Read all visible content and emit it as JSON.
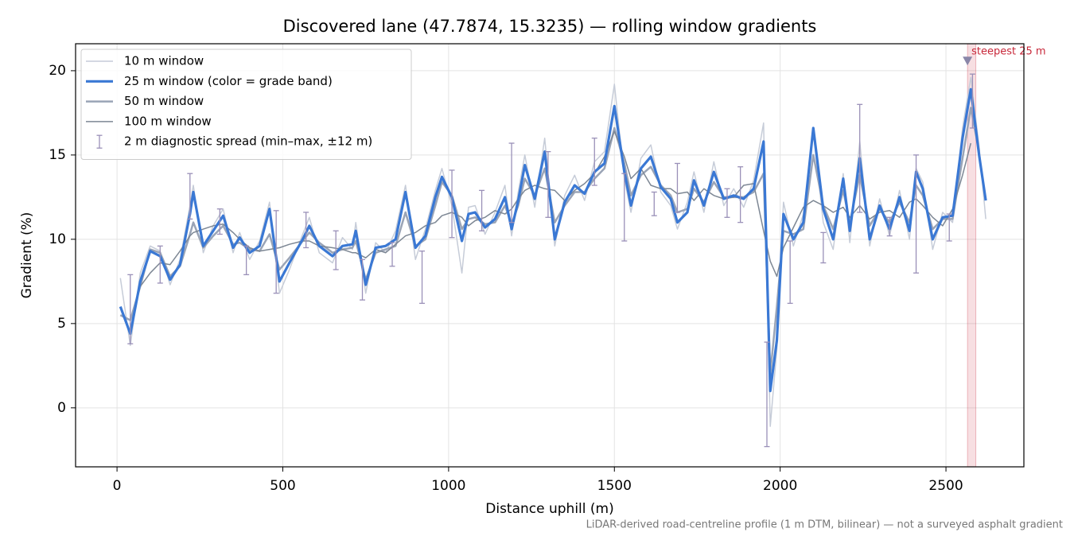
{
  "chart_data": {
    "type": "line",
    "title": "Discovered lane (47.7874, 15.3235) — rolling window gradients",
    "x_label": "Distance uphill (m)",
    "y_label": "Gradient (%)",
    "footnote": "LiDAR-derived road-centreline profile (1 m DTM, bilinear) — not a surveyed asphalt gradient",
    "xlim": [
      -125,
      2735
    ],
    "ylim": [
      -3.5,
      21.6
    ],
    "xticks": [
      0,
      500,
      1000,
      1500,
      2000,
      2500
    ],
    "yticks": [
      0,
      5,
      10,
      15,
      20
    ],
    "grid": true,
    "legend": "upper left",
    "x": [
      10,
      40,
      70,
      100,
      130,
      160,
      190,
      220,
      230,
      260,
      290,
      320,
      350,
      370,
      400,
      430,
      460,
      490,
      520,
      560,
      580,
      610,
      650,
      680,
      710,
      720,
      750,
      780,
      810,
      840,
      870,
      900,
      930,
      960,
      980,
      1010,
      1040,
      1060,
      1080,
      1110,
      1140,
      1170,
      1190,
      1210,
      1230,
      1260,
      1290,
      1320,
      1350,
      1380,
      1410,
      1440,
      1470,
      1500,
      1530,
      1550,
      1580,
      1610,
      1640,
      1670,
      1690,
      1720,
      1740,
      1770,
      1800,
      1830,
      1860,
      1890,
      1920,
      1950,
      1970,
      1990,
      2010,
      2040,
      2070,
      2100,
      2130,
      2160,
      2190,
      2210,
      2240,
      2270,
      2300,
      2330,
      2360,
      2390,
      2410,
      2430,
      2460,
      2490,
      2520,
      2550,
      2575,
      2600,
      2620
    ],
    "series": [
      {
        "name": "10 m window",
        "color": "#c6ccd8",
        "linewidth": 1.5,
        "values": [
          7.7,
          3.7,
          8.0,
          9.6,
          9.3,
          7.3,
          8.8,
          12.0,
          13.2,
          9.2,
          10.8,
          11.8,
          9.2,
          10.4,
          8.8,
          9.9,
          12.2,
          6.8,
          8.2,
          10.3,
          11.3,
          9.2,
          8.6,
          10.1,
          9.4,
          11.0,
          6.8,
          9.8,
          9.2,
          10.5,
          13.2,
          8.8,
          10.6,
          12.9,
          14.2,
          12.0,
          8.0,
          11.9,
          12.0,
          10.3,
          11.6,
          13.2,
          10.2,
          12.8,
          15.0,
          11.9,
          16.0,
          9.6,
          12.6,
          13.8,
          12.3,
          14.6,
          15.2,
          19.2,
          13.6,
          11.6,
          14.8,
          15.6,
          12.8,
          12.0,
          10.6,
          12.2,
          14.0,
          11.6,
          14.6,
          12.0,
          13.0,
          11.9,
          13.5,
          16.9,
          -1.1,
          3.5,
          12.2,
          9.6,
          11.5,
          16.4,
          11.0,
          9.4,
          13.9,
          9.8,
          15.8,
          9.6,
          12.4,
          10.2,
          12.9,
          10.0,
          14.2,
          13.4,
          9.4,
          11.6,
          11.0,
          16.6,
          19.6,
          15.5,
          11.2
        ]
      },
      {
        "name": "50 m window",
        "color": "#9aa4b6",
        "linewidth": 2.5,
        "values": [
          5.5,
          5.2,
          7.2,
          9.4,
          9.2,
          7.8,
          8.4,
          10.3,
          11.0,
          9.5,
          10.2,
          10.8,
          9.7,
          9.8,
          9.4,
          9.3,
          10.3,
          8.2,
          8.9,
          9.9,
          10.4,
          9.8,
          9.2,
          9.4,
          9.5,
          9.9,
          7.6,
          9.2,
          9.4,
          9.6,
          11.6,
          9.6,
          10.0,
          12.0,
          13.4,
          12.6,
          10.6,
          11.2,
          11.3,
          10.9,
          11.0,
          12.0,
          10.9,
          12.0,
          13.6,
          12.6,
          14.2,
          11.0,
          12.0,
          12.8,
          12.8,
          13.6,
          14.2,
          16.6,
          14.5,
          12.6,
          13.8,
          14.3,
          13.2,
          12.6,
          11.6,
          11.8,
          13.0,
          12.2,
          13.4,
          12.5,
          12.5,
          12.5,
          12.8,
          13.9,
          2.0,
          6.0,
          10.5,
          10.3,
          10.6,
          15.0,
          12.0,
          10.6,
          12.9,
          11.0,
          13.8,
          10.8,
          11.8,
          11.0,
          12.2,
          11.0,
          13.2,
          12.6,
          10.6,
          11.2,
          11.2,
          14.8,
          17.8,
          15.2,
          null
        ]
      },
      {
        "name": "100 m window",
        "color": "#7d8794",
        "linewidth": 1.5,
        "values": [
          null,
          null,
          7.2,
          8.0,
          8.6,
          8.5,
          9.3,
          10.2,
          10.4,
          10.6,
          10.8,
          10.9,
          10.4,
          10.0,
          9.5,
          9.3,
          9.4,
          9.5,
          9.7,
          9.9,
          9.9,
          9.6,
          9.5,
          9.4,
          9.2,
          9.2,
          8.9,
          9.4,
          9.2,
          9.7,
          10.2,
          10.4,
          10.8,
          11.0,
          11.4,
          11.6,
          11.3,
          10.8,
          11.1,
          11.3,
          11.7,
          11.5,
          11.8,
          12.4,
          12.9,
          13.2,
          13.0,
          12.9,
          12.3,
          12.9,
          13.3,
          13.9,
          14.9,
          16.4,
          14.9,
          13.6,
          14.2,
          13.2,
          13.0,
          13.0,
          12.7,
          12.8,
          12.3,
          13.0,
          12.6,
          12.4,
          12.5,
          13.2,
          13.3,
          10.5,
          8.7,
          7.8,
          9.5,
          10.7,
          11.9,
          12.3,
          12.0,
          11.6,
          11.9,
          11.3,
          12.0,
          11.2,
          11.6,
          11.7,
          11.3,
          12.2,
          12.4,
          12.0,
          11.3,
          10.8,
          11.8,
          13.8,
          15.7,
          null,
          null
        ]
      },
      {
        "name": "25 m window (color = grade band)",
        "color": "#3a78d4",
        "linewidth": 3.2,
        "values": [
          6.0,
          4.4,
          7.5,
          9.3,
          9.0,
          7.6,
          8.5,
          11.5,
          12.8,
          9.6,
          10.5,
          11.4,
          9.5,
          10.1,
          9.2,
          9.6,
          11.8,
          7.5,
          8.6,
          10.0,
          10.8,
          9.6,
          9.0,
          9.6,
          9.7,
          10.5,
          7.3,
          9.5,
          9.6,
          10.0,
          12.8,
          9.5,
          10.2,
          12.5,
          13.7,
          12.5,
          9.9,
          11.5,
          11.6,
          10.7,
          11.2,
          12.5,
          10.6,
          12.3,
          14.4,
          12.4,
          15.2,
          10.0,
          12.2,
          13.2,
          12.7,
          14.0,
          14.5,
          17.9,
          14.0,
          12.0,
          14.2,
          14.9,
          13.1,
          12.4,
          11.0,
          11.6,
          13.5,
          12.0,
          14.0,
          12.4,
          12.6,
          12.4,
          13.0,
          15.8,
          1.0,
          4.0,
          11.5,
          10.0,
          11.0,
          16.6,
          11.8,
          10.0,
          13.6,
          10.5,
          14.8,
          10.0,
          12.0,
          10.6,
          12.5,
          10.5,
          14.0,
          13.0,
          10.0,
          11.3,
          11.4,
          16.0,
          18.9,
          15.0,
          12.3
        ]
      }
    ],
    "legend_order": [
      0,
      3,
      1,
      2
    ],
    "spread": {
      "name": "2 m diagnostic spread (min–max, ±12 m)",
      "color": "#9a90b8",
      "x": [
        40,
        130,
        220,
        310,
        390,
        480,
        570,
        660,
        740,
        830,
        920,
        1010,
        1100,
        1190,
        1300,
        1440,
        1530,
        1620,
        1690,
        1840,
        1880,
        1960,
        2030,
        2130,
        2240,
        2330,
        2410,
        2510,
        2580
      ],
      "low": [
        3.8,
        7.4,
        11.2,
        10.3,
        7.9,
        6.8,
        9.5,
        8.2,
        6.4,
        8.4,
        6.2,
        10.1,
        10.5,
        11.0,
        11.3,
        13.2,
        9.9,
        11.4,
        11.6,
        11.3,
        11.0,
        -2.3,
        6.2,
        8.6,
        11.6,
        10.2,
        8.0,
        9.9,
        16.6
      ],
      "high": [
        7.9,
        9.6,
        13.9,
        11.8,
        9.6,
        11.7,
        11.6,
        10.5,
        8.8,
        9.8,
        9.3,
        14.1,
        12.9,
        15.7,
        15.2,
        16.0,
        13.9,
        12.8,
        14.5,
        13.0,
        14.3,
        3.9,
        9.9,
        10.4,
        18.0,
        11.3,
        15.0,
        11.5,
        19.8
      ]
    },
    "annotation": {
      "text": "steepest 25 m",
      "color": "#c8283a",
      "span": [
        2565,
        2590
      ],
      "x": 2565,
      "y": 20.6
    }
  }
}
